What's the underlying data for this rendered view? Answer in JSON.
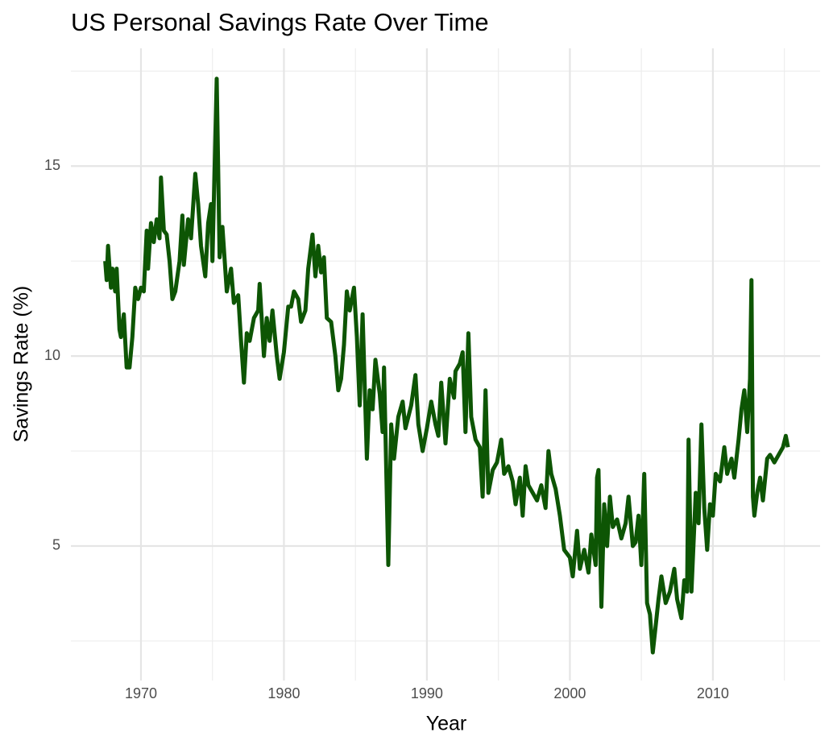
{
  "chart_data": {
    "type": "line",
    "title": "US Personal Savings Rate Over Time",
    "x_label": "Year",
    "y_label": "Savings Rate (%)",
    "color": "#0d5504",
    "xlim": [
      1965.1,
      2017.5
    ],
    "xticks": [
      1970,
      1980,
      1990,
      2000,
      2010
    ],
    "xminor": [
      1975,
      1985,
      1995,
      2005,
      2015
    ],
    "ylim": [
      1.46,
      18.1
    ],
    "yticks": [
      5,
      10,
      15
    ],
    "yminor": [
      2.5,
      7.5,
      12.5,
      17.5
    ],
    "grid": true,
    "x": [
      1967.5,
      1967.6,
      1967.7,
      1967.9,
      1968.0,
      1968.2,
      1968.3,
      1968.5,
      1968.6,
      1968.8,
      1969.0,
      1969.2,
      1969.4,
      1969.6,
      1969.8,
      1970.0,
      1970.2,
      1970.4,
      1970.5,
      1970.7,
      1970.9,
      1971.1,
      1971.3,
      1971.4,
      1971.6,
      1971.8,
      1972.0,
      1972.2,
      1972.4,
      1972.7,
      1972.9,
      1973.0,
      1973.3,
      1973.5,
      1973.8,
      1974.0,
      1974.2,
      1974.5,
      1974.7,
      1974.9,
      1975.0,
      1975.3,
      1975.5,
      1975.7,
      1976.0,
      1976.3,
      1976.5,
      1976.8,
      1977.0,
      1977.2,
      1977.4,
      1977.6,
      1977.9,
      1978.2,
      1978.3,
      1978.6,
      1978.8,
      1979.0,
      1979.2,
      1979.5,
      1979.7,
      1980.0,
      1980.3,
      1980.5,
      1980.7,
      1981.0,
      1981.2,
      1981.5,
      1981.7,
      1982.0,
      1982.2,
      1982.4,
      1982.6,
      1982.8,
      1983.0,
      1983.3,
      1983.6,
      1983.8,
      1984.0,
      1984.2,
      1984.4,
      1984.6,
      1984.9,
      1985.1,
      1985.3,
      1985.5,
      1985.8,
      1986.0,
      1986.2,
      1986.4,
      1986.7,
      1986.9,
      1987.0,
      1987.3,
      1987.5,
      1987.7,
      1988.0,
      1988.3,
      1988.5,
      1988.9,
      1989.2,
      1989.4,
      1989.7,
      1990.0,
      1990.3,
      1990.6,
      1990.8,
      1991.0,
      1991.3,
      1991.6,
      1991.9,
      1992.0,
      1992.3,
      1992.5,
      1992.7,
      1992.9,
      1993.1,
      1993.4,
      1993.7,
      1993.9,
      1994.1,
      1994.3,
      1994.6,
      1994.9,
      1995.2,
      1995.4,
      1995.7,
      1996.0,
      1996.2,
      1996.5,
      1996.7,
      1996.9,
      1997.1,
      1997.4,
      1997.7,
      1998.0,
      1998.3,
      1998.5,
      1998.7,
      1999.0,
      1999.3,
      1999.6,
      2000.0,
      2000.2,
      2000.5,
      2000.7,
      2001.0,
      2001.3,
      2001.5,
      2001.8,
      2001.9,
      2002.0,
      2002.2,
      2002.4,
      2002.6,
      2002.8,
      2003.0,
      2003.3,
      2003.6,
      2003.9,
      2004.1,
      2004.4,
      2004.6,
      2004.8,
      2005.0,
      2005.2,
      2005.4,
      2005.6,
      2005.8,
      2006.0,
      2006.2,
      2006.4,
      2006.7,
      2007.0,
      2007.3,
      2007.5,
      2007.8,
      2008.0,
      2008.2,
      2008.3,
      2008.5,
      2008.8,
      2009.0,
      2009.2,
      2009.4,
      2009.6,
      2009.8,
      2010.0,
      2010.2,
      2010.5,
      2010.8,
      2011.0,
      2011.3,
      2011.5,
      2011.8,
      2012.0,
      2012.2,
      2012.4,
      2012.6,
      2012.7,
      2012.8,
      2012.9,
      2013.1,
      2013.3,
      2013.5,
      2013.8,
      2014.0,
      2014.3,
      2014.6,
      2014.9,
      2015.1,
      2015.25
    ],
    "values": [
      12.5,
      12.0,
      12.9,
      11.8,
      12.3,
      11.7,
      12.3,
      10.7,
      10.5,
      11.1,
      9.7,
      9.7,
      10.5,
      11.8,
      11.5,
      11.8,
      11.7,
      13.3,
      12.3,
      13.5,
      13.0,
      13.6,
      13.1,
      14.7,
      13.3,
      13.2,
      12.5,
      11.5,
      11.7,
      12.5,
      13.7,
      12.4,
      13.6,
      13.1,
      14.8,
      14.0,
      12.9,
      12.1,
      13.5,
      14.0,
      12.5,
      17.3,
      12.6,
      13.4,
      11.7,
      12.3,
      11.4,
      11.6,
      10.4,
      9.3,
      10.6,
      10.4,
      11.0,
      11.2,
      11.9,
      10.0,
      11.0,
      10.4,
      11.2,
      10.0,
      9.4,
      10.1,
      11.3,
      11.3,
      11.7,
      11.5,
      10.9,
      11.2,
      12.3,
      13.2,
      12.1,
      12.9,
      12.2,
      12.6,
      11.0,
      10.9,
      10.0,
      9.1,
      9.4,
      10.3,
      11.7,
      11.2,
      11.8,
      10.5,
      8.7,
      11.1,
      7.3,
      9.1,
      8.6,
      9.9,
      9.0,
      8.0,
      9.7,
      4.5,
      8.2,
      7.3,
      8.4,
      8.8,
      8.1,
      8.7,
      9.5,
      8.2,
      7.5,
      8.1,
      8.8,
      8.2,
      7.9,
      9.3,
      7.7,
      9.4,
      8.9,
      9.6,
      9.8,
      10.1,
      8.0,
      10.6,
      8.4,
      7.8,
      7.6,
      6.3,
      9.1,
      6.4,
      7.0,
      7.2,
      7.8,
      6.9,
      7.1,
      6.7,
      6.1,
      6.8,
      5.8,
      7.1,
      6.6,
      6.4,
      6.2,
      6.6,
      6.0,
      7.5,
      6.9,
      6.5,
      5.8,
      4.9,
      4.7,
      4.2,
      5.4,
      4.4,
      4.9,
      4.3,
      5.3,
      4.5,
      6.8,
      7.0,
      3.4,
      6.1,
      5.0,
      6.3,
      5.5,
      5.7,
      5.2,
      5.6,
      6.3,
      5.0,
      5.1,
      5.8,
      4.5,
      6.9,
      3.5,
      3.2,
      2.2,
      2.9,
      3.6,
      4.2,
      3.5,
      3.8,
      4.4,
      3.6,
      3.1,
      4.1,
      3.8,
      7.8,
      3.8,
      6.4,
      5.6,
      8.2,
      6.0,
      4.9,
      6.1,
      5.8,
      6.9,
      6.7,
      7.6,
      6.9,
      7.3,
      6.8,
      7.8,
      8.6,
      9.1,
      8.0,
      9.4,
      12.0,
      6.3,
      5.8,
      6.4,
      6.8,
      6.2,
      7.3,
      7.4,
      7.2,
      7.4,
      7.6,
      7.9,
      7.6
    ]
  }
}
